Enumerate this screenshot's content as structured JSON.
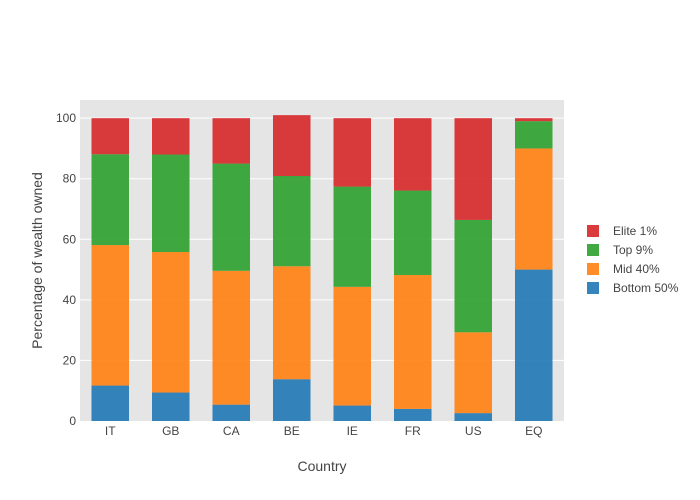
{
  "chart_data": {
    "type": "bar",
    "stacked": true,
    "categories": [
      "IT",
      "GB",
      "CA",
      "BE",
      "IE",
      "FR",
      "US",
      "EQ"
    ],
    "series": [
      {
        "name": "Bottom 50%",
        "color": "#1f77b4",
        "values": [
          11.7,
          9.4,
          5.4,
          13.8,
          5.1,
          4.0,
          2.6,
          50.0
        ]
      },
      {
        "name": "Mid 40%",
        "color": "#ff7f0e",
        "values": [
          46.4,
          46.4,
          44.2,
          37.3,
          39.2,
          44.2,
          26.7,
          40.0
        ]
      },
      {
        "name": "Top 9%",
        "color": "#2ca02c",
        "values": [
          30.0,
          32.2,
          35.4,
          29.8,
          33.1,
          27.9,
          37.1,
          9.0
        ]
      },
      {
        "name": "Elite 1%",
        "color": "#d62728",
        "values": [
          11.9,
          12.0,
          15.0,
          20.1,
          22.6,
          23.9,
          33.6,
          1.0
        ]
      }
    ],
    "xlabel": "Country",
    "ylabel": "Percentage of wealth owned",
    "ylim": [
      0,
      106
    ],
    "yticks": [
      0,
      20,
      40,
      60,
      80,
      100
    ],
    "grid": true,
    "legend_position": "right",
    "legend_order": [
      "Elite 1%",
      "Top 9%",
      "Mid 40%",
      "Bottom 50%"
    ],
    "plot_background": "#e5e5e5"
  }
}
